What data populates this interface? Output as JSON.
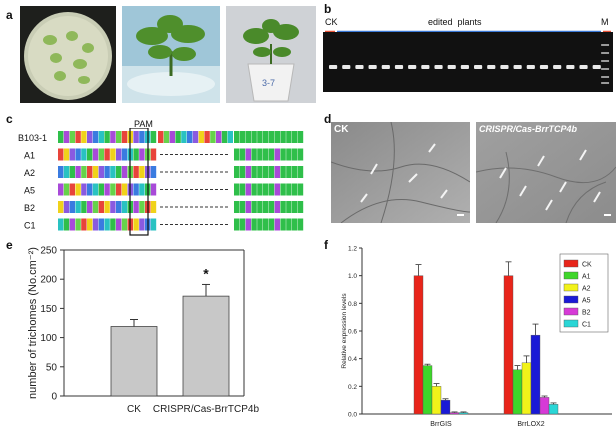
{
  "panels": {
    "a": {
      "label": "a"
    },
    "b": {
      "label": "b",
      "ck_label": "CK",
      "edited_label": "edited  plants",
      "marker_label": "M",
      "lane_count": 20,
      "colors": {
        "ck": "#e8553a",
        "edited": "#3a78d6",
        "marker": "#e8553a",
        "gel": "#111111"
      }
    },
    "c": {
      "label": "c",
      "pam_label": "PAM",
      "rows": [
        "B103-1",
        "A1",
        "A2",
        "A5",
        "B2",
        "C1"
      ]
    },
    "d": {
      "label": "d",
      "left_label": "CK",
      "right_label": "CRISPR/Cas-BrrTCP4b"
    },
    "e": {
      "label": "e",
      "significance": "*"
    },
    "f": {
      "label": "f"
    }
  },
  "chart_data": [
    {
      "type": "bar",
      "panel": "e",
      "categories": [
        "CK",
        "CRISPR/Cas-BrrTCP4b"
      ],
      "values": [
        119,
        171
      ],
      "errors": [
        12,
        20
      ],
      "ylabel": "number of trichomes (No.cm⁻²)",
      "ylim": [
        0,
        250
      ],
      "yticks": [
        0,
        50,
        100,
        150,
        200,
        250
      ],
      "bar_color": "#c8c8c8"
    },
    {
      "type": "bar",
      "panel": "f",
      "categories": [
        "BrrGIS",
        "BrrLOX2"
      ],
      "series": [
        {
          "name": "CK",
          "values": [
            1.0,
            1.0
          ],
          "errors": [
            0.08,
            0.1
          ],
          "color": "#e8251a"
        },
        {
          "name": "A1",
          "values": [
            0.35,
            0.32
          ],
          "errors": [
            0.01,
            0.03
          ],
          "color": "#3ed62a"
        },
        {
          "name": "A2",
          "values": [
            0.2,
            0.37
          ],
          "errors": [
            0.02,
            0.05
          ],
          "color": "#f2f21a"
        },
        {
          "name": "A5",
          "values": [
            0.1,
            0.57
          ],
          "errors": [
            0.01,
            0.08
          ],
          "color": "#1a1ad6"
        },
        {
          "name": "B2",
          "values": [
            0.01,
            0.12
          ],
          "errors": [
            0.005,
            0.01
          ],
          "color": "#d63ad6"
        },
        {
          "name": "C1",
          "values": [
            0.01,
            0.07
          ],
          "errors": [
            0.005,
            0.01
          ],
          "color": "#2ad6d6"
        }
      ],
      "ylabel": "Relative expression levels",
      "ylim": [
        0,
        1.2
      ],
      "yticks": [
        "0.0",
        "0.2",
        "0.4",
        "0.6",
        "0.8",
        "1.0",
        "1.2"
      ],
      "legend": "top-right"
    }
  ]
}
